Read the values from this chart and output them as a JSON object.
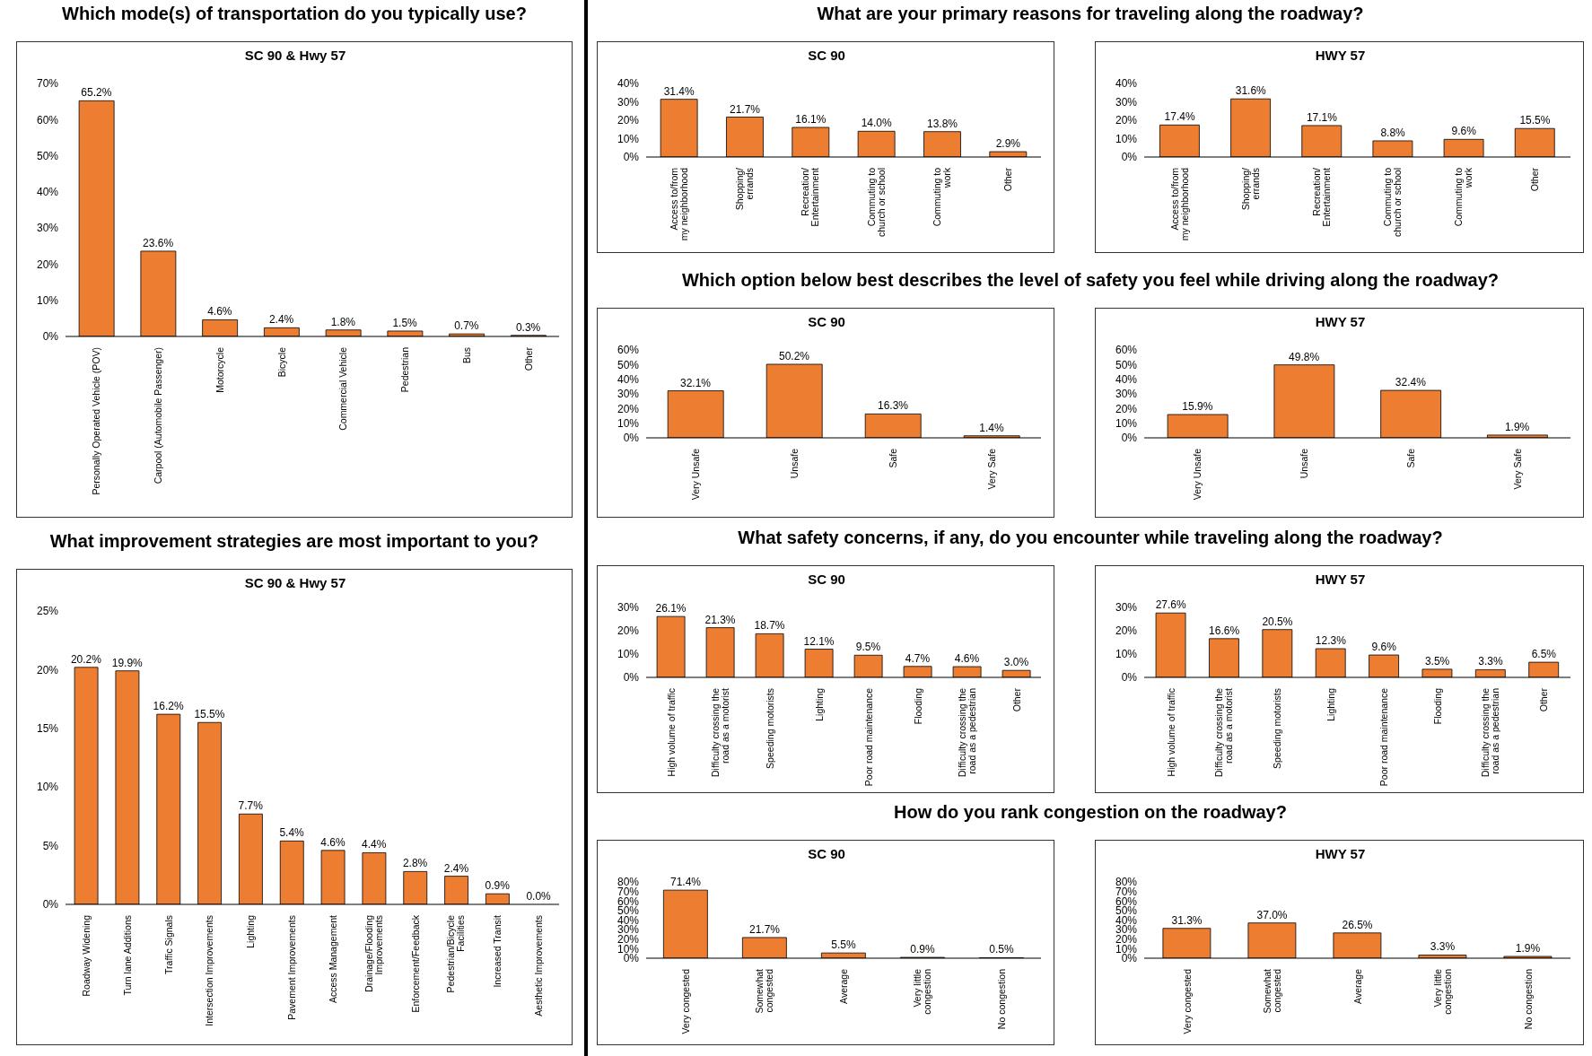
{
  "chart_data": [
    {
      "type": "bar",
      "title": "Which mode(s) of transportation do you typically use?",
      "subtitle": "SC 90 & Hwy 57",
      "categories": [
        "Personally Operated Vehicle (POV)",
        "Carpool (Automobile Passenger)",
        "Motorcycle",
        "Bicycle",
        "Commercial Vehicle",
        "Pedestrian",
        "Bus",
        "Other"
      ],
      "values": [
        65.2,
        23.6,
        4.6,
        2.4,
        1.8,
        1.5,
        0.7,
        0.3
      ],
      "value_labels": [
        "65.2%",
        "23.6%",
        "4.6%",
        "2.4%",
        "1.8%",
        "1.5%",
        "0.7%",
        "0.3%"
      ],
      "color": "#ed7d31",
      "ylim": [
        0,
        70
      ],
      "yticks": [
        {
          "value": 0,
          "label": "0%"
        },
        {
          "value": 10,
          "label": "10%"
        },
        {
          "value": 20,
          "label": "20%"
        },
        {
          "value": 30,
          "label": "30%"
        },
        {
          "value": 40,
          "label": "40%"
        },
        {
          "value": 50,
          "label": "50%"
        },
        {
          "value": 60,
          "label": "60%"
        },
        {
          "value": 70,
          "label": "70%"
        }
      ]
    },
    {
      "type": "bar",
      "title": "What improvement strategies are most important to you?",
      "subtitle": "SC 90 & Hwy 57",
      "categories": [
        "Roadway Widening",
        "Turn lane Additions",
        "Traffic Signals",
        "Intersection Improvements",
        "Lighting",
        "Pavement Improvements",
        "Access Management",
        "Drainage/Flooding Improvements",
        "Enforcement/Feedback",
        "Pedestrian/Bicycle Facilities",
        "Increased Transit",
        "Aesthetic Improvements"
      ],
      "values": [
        20.2,
        19.9,
        16.2,
        15.5,
        7.7,
        5.4,
        4.6,
        4.4,
        2.8,
        2.4,
        0.9,
        0.0
      ],
      "value_labels": [
        "20.2%",
        "19.9%",
        "16.2%",
        "15.5%",
        "7.7%",
        "5.4%",
        "4.6%",
        "4.4%",
        "2.8%",
        "2.4%",
        "0.9%",
        "0.0%"
      ],
      "color": "#ed7d31",
      "ylim": [
        0,
        25
      ],
      "yticks": [
        {
          "value": 0,
          "label": "0%"
        },
        {
          "value": 5,
          "label": "5%"
        },
        {
          "value": 10,
          "label": "10%"
        },
        {
          "value": 15,
          "label": "15%"
        },
        {
          "value": 20,
          "label": "20%"
        },
        {
          "value": 25,
          "label": "25%"
        }
      ]
    },
    {
      "type": "bar",
      "title": "What are your primary reasons for traveling along the roadway?",
      "subtitle": "SC 90",
      "categories": [
        "Access to/from my neighborhood",
        "Shopping/ errands",
        "Recreation/ Entertainment",
        "Commuting to church or school",
        "Commuting to work",
        "Other"
      ],
      "values": [
        31.4,
        21.7,
        16.1,
        14.0,
        13.8,
        2.9
      ],
      "value_labels": [
        "31.4%",
        "21.7%",
        "16.1%",
        "14.0%",
        "13.8%",
        "2.9%"
      ],
      "color": "#ed7d31",
      "ylim": [
        0,
        40
      ],
      "yticks": [
        {
          "value": 0,
          "label": "0%"
        },
        {
          "value": 10,
          "label": "10%"
        },
        {
          "value": 20,
          "label": "20%"
        },
        {
          "value": 30,
          "label": "30%"
        },
        {
          "value": 40,
          "label": "40%"
        }
      ]
    },
    {
      "type": "bar",
      "subtitle": "HWY 57",
      "categories": [
        "Access to/from my neighborhood",
        "Shopping/ errands",
        "Recreation/ Entertainment",
        "Commuting to church or school",
        "Commuting to work",
        "Other"
      ],
      "values": [
        17.4,
        31.6,
        17.1,
        8.8,
        9.6,
        15.5
      ],
      "value_labels": [
        "17.4%",
        "31.6%",
        "17.1%",
        "8.8%",
        "9.6%",
        "15.5%"
      ],
      "color": "#ed7d31",
      "ylim": [
        0,
        40
      ],
      "yticks": [
        {
          "value": 0,
          "label": "0%"
        },
        {
          "value": 10,
          "label": "10%"
        },
        {
          "value": 20,
          "label": "20%"
        },
        {
          "value": 30,
          "label": "30%"
        },
        {
          "value": 40,
          "label": "40%"
        }
      ]
    },
    {
      "type": "bar",
      "title": "Which option below best describes the level of safety you feel while driving along the roadway?",
      "subtitle": "SC 90",
      "categories": [
        "Very Unsafe",
        "Unsafe",
        "Safe",
        "Very Safe"
      ],
      "values": [
        32.1,
        50.2,
        16.3,
        1.4
      ],
      "value_labels": [
        "32.1%",
        "50.2%",
        "16.3%",
        "1.4%"
      ],
      "color": "#ed7d31",
      "ylim": [
        0,
        60
      ],
      "yticks": [
        {
          "value": 0,
          "label": "0%"
        },
        {
          "value": 10,
          "label": "10%"
        },
        {
          "value": 20,
          "label": "20%"
        },
        {
          "value": 30,
          "label": "30%"
        },
        {
          "value": 40,
          "label": "40%"
        },
        {
          "value": 50,
          "label": "50%"
        },
        {
          "value": 60,
          "label": "60%"
        }
      ]
    },
    {
      "type": "bar",
      "subtitle": "HWY 57",
      "categories": [
        "Very Unsafe",
        "Unsafe",
        "Safe",
        "Very Safe"
      ],
      "values": [
        15.9,
        49.8,
        32.4,
        1.9
      ],
      "value_labels": [
        "15.9%",
        "49.8%",
        "32.4%",
        "1.9%"
      ],
      "color": "#ed7d31",
      "ylim": [
        0,
        60
      ],
      "yticks": [
        {
          "value": 0,
          "label": "0%"
        },
        {
          "value": 10,
          "label": "10%"
        },
        {
          "value": 20,
          "label": "20%"
        },
        {
          "value": 30,
          "label": "30%"
        },
        {
          "value": 40,
          "label": "40%"
        },
        {
          "value": 50,
          "label": "50%"
        },
        {
          "value": 60,
          "label": "60%"
        }
      ]
    },
    {
      "type": "bar",
      "title": "What safety concerns, if any, do you encounter while traveling along the roadway?",
      "subtitle": "SC 90",
      "categories": [
        "High volume of traffic",
        "Difficulty crossing the road as a motorist",
        "Speeding motorists",
        "Lighting",
        "Poor road maintenance",
        "Flooding",
        "Difficulty crossing the road as a pedestrian",
        "Other"
      ],
      "values": [
        26.1,
        21.3,
        18.7,
        12.1,
        9.5,
        4.7,
        4.6,
        3.0
      ],
      "value_labels": [
        "26.1%",
        "21.3%",
        "18.7%",
        "12.1%",
        "9.5%",
        "4.7%",
        "4.6%",
        "3.0%"
      ],
      "color": "#ed7d31",
      "ylim": [
        0,
        30
      ],
      "yticks": [
        {
          "value": 0,
          "label": "0%"
        },
        {
          "value": 10,
          "label": "10%"
        },
        {
          "value": 20,
          "label": "20%"
        },
        {
          "value": 30,
          "label": "30%"
        }
      ]
    },
    {
      "type": "bar",
      "subtitle": "HWY 57",
      "categories": [
        "High volume of traffic",
        "Difficulty crossing the road as a motorist",
        "Speeding motorists",
        "Lighting",
        "Poor road maintenance",
        "Flooding",
        "Difficulty crossing the road as a pedestrian",
        "Other"
      ],
      "values": [
        27.6,
        16.6,
        20.5,
        12.3,
        9.6,
        3.5,
        3.3,
        6.5
      ],
      "value_labels": [
        "27.6%",
        "16.6%",
        "20.5%",
        "12.3%",
        "9.6%",
        "3.5%",
        "3.3%",
        "6.5%"
      ],
      "color": "#ed7d31",
      "ylim": [
        0,
        30
      ],
      "yticks": [
        {
          "value": 0,
          "label": "0%"
        },
        {
          "value": 10,
          "label": "10%"
        },
        {
          "value": 20,
          "label": "20%"
        },
        {
          "value": 30,
          "label": "30%"
        }
      ]
    },
    {
      "type": "bar",
      "title": "How do you rank congestion on the roadway?",
      "subtitle": "SC 90",
      "categories": [
        "Very congested",
        "Somewhat congested",
        "Average",
        "Very little congestion",
        "No congestion"
      ],
      "values": [
        71.4,
        21.7,
        5.5,
        0.9,
        0.5
      ],
      "value_labels": [
        "71.4%",
        "21.7%",
        "5.5%",
        "0.9%",
        "0.5%"
      ],
      "color": "#ed7d31",
      "ylim": [
        0,
        80
      ],
      "yticks": [
        {
          "value": 0,
          "label": "0%"
        },
        {
          "value": 10,
          "label": "10%"
        },
        {
          "value": 20,
          "label": "20%"
        },
        {
          "value": 30,
          "label": "30%"
        },
        {
          "value": 40,
          "label": "40%"
        },
        {
          "value": 50,
          "label": "50%"
        },
        {
          "value": 60,
          "label": "60%"
        },
        {
          "value": 70,
          "label": "70%"
        },
        {
          "value": 80,
          "label": "80%"
        }
      ]
    },
    {
      "type": "bar",
      "subtitle": "HWY 57",
      "categories": [
        "Very congested",
        "Somewhat congested",
        "Average",
        "Very little congestion",
        "No congestion"
      ],
      "values": [
        31.3,
        37.0,
        26.5,
        3.3,
        1.9
      ],
      "value_labels": [
        "31.3%",
        "37.0%",
        "26.5%",
        "3.3%",
        "1.9%"
      ],
      "color": "#ed7d31",
      "ylim": [
        0,
        80
      ],
      "yticks": [
        {
          "value": 0,
          "label": "0%"
        },
        {
          "value": 10,
          "label": "10%"
        },
        {
          "value": 20,
          "label": "20%"
        },
        {
          "value": 30,
          "label": "30%"
        },
        {
          "value": 40,
          "label": "40%"
        },
        {
          "value": 50,
          "label": "50%"
        },
        {
          "value": 60,
          "label": "60%"
        },
        {
          "value": 70,
          "label": "70%"
        },
        {
          "value": 80,
          "label": "80%"
        }
      ]
    }
  ]
}
